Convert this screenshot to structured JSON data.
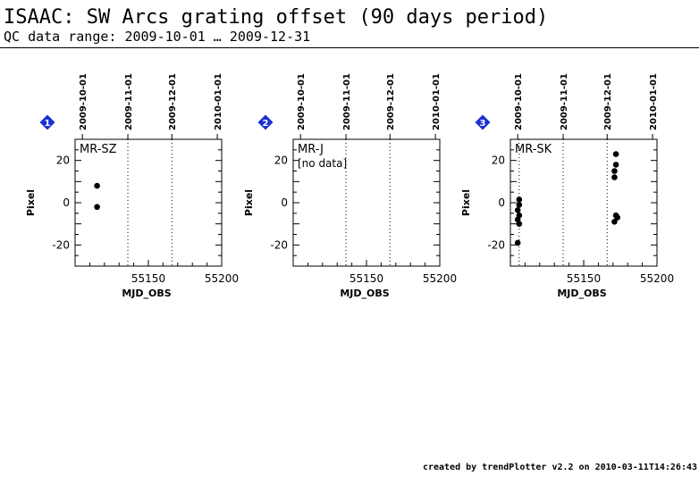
{
  "page": {
    "title": "ISAAC: SW Arcs grating offset (90 days period)",
    "subtitle": "QC data range: 2009-10-01 … 2009-12-31",
    "footer": "created by trendPlotter v2.2 on 2010-03-11T14:26:43"
  },
  "colors": {
    "badge": "#1a2fd6",
    "points": "#000000",
    "axes": "#000000"
  },
  "chart_data": [
    {
      "type": "scatter",
      "badge": "1",
      "label": "MR-SZ",
      "note": "",
      "xlabel": "MJD_OBS",
      "ylabel": "Pixel",
      "xlim": [
        55100,
        55200
      ],
      "ylim": [
        -30,
        30
      ],
      "x_ticks": [
        55150,
        55200
      ],
      "y_ticks": [
        20,
        0,
        -20
      ],
      "date_ticks": [
        {
          "label": "2009-10-01",
          "mjd": 55105
        },
        {
          "label": "2009-11-01",
          "mjd": 55136
        },
        {
          "label": "2009-12-01",
          "mjd": 55166
        },
        {
          "label": "2010-01-01",
          "mjd": 55197
        }
      ],
      "date_markers": [
        55136,
        55166
      ],
      "points": [
        {
          "x": 55115,
          "y": 8
        },
        {
          "x": 55115,
          "y": -2
        }
      ]
    },
    {
      "type": "scatter",
      "badge": "2",
      "label": "MR-J",
      "note": "[no data]",
      "xlabel": "MJD_OBS",
      "ylabel": "Pixel",
      "xlim": [
        55100,
        55200
      ],
      "ylim": [
        -30,
        30
      ],
      "x_ticks": [
        55150,
        55200
      ],
      "y_ticks": [
        20,
        0,
        -20
      ],
      "date_ticks": [
        {
          "label": "2009-10-01",
          "mjd": 55105
        },
        {
          "label": "2009-11-01",
          "mjd": 55136
        },
        {
          "label": "2009-12-01",
          "mjd": 55166
        },
        {
          "label": "2010-01-01",
          "mjd": 55197
        }
      ],
      "date_markers": [
        55136,
        55166
      ],
      "points": []
    },
    {
      "type": "scatter",
      "badge": "3",
      "label": "MR-SK",
      "note": "",
      "xlabel": "MJD_OBS",
      "ylabel": "Pixel",
      "xlim": [
        55100,
        55200
      ],
      "ylim": [
        -30,
        30
      ],
      "x_ticks": [
        55150,
        55200
      ],
      "y_ticks": [
        20,
        0,
        -20
      ],
      "date_ticks": [
        {
          "label": "2009-10-01",
          "mjd": 55105
        },
        {
          "label": "2009-11-01",
          "mjd": 55136
        },
        {
          "label": "2009-12-01",
          "mjd": 55166
        },
        {
          "label": "2010-01-01",
          "mjd": 55197
        }
      ],
      "date_markers": [
        55106,
        55136,
        55166
      ],
      "points": [
        {
          "x": 55106,
          "y": 1.5
        },
        {
          "x": 55106,
          "y": -1
        },
        {
          "x": 55105,
          "y": -3.5
        },
        {
          "x": 55106,
          "y": -6
        },
        {
          "x": 55105,
          "y": -8
        },
        {
          "x": 55106,
          "y": -10
        },
        {
          "x": 55105,
          "y": -19
        },
        {
          "x": 55172,
          "y": 23
        },
        {
          "x": 55172,
          "y": 18
        },
        {
          "x": 55171,
          "y": 15
        },
        {
          "x": 55171,
          "y": 12
        },
        {
          "x": 55172,
          "y": -6
        },
        {
          "x": 55173,
          "y": -7
        },
        {
          "x": 55171,
          "y": -9
        }
      ]
    }
  ]
}
